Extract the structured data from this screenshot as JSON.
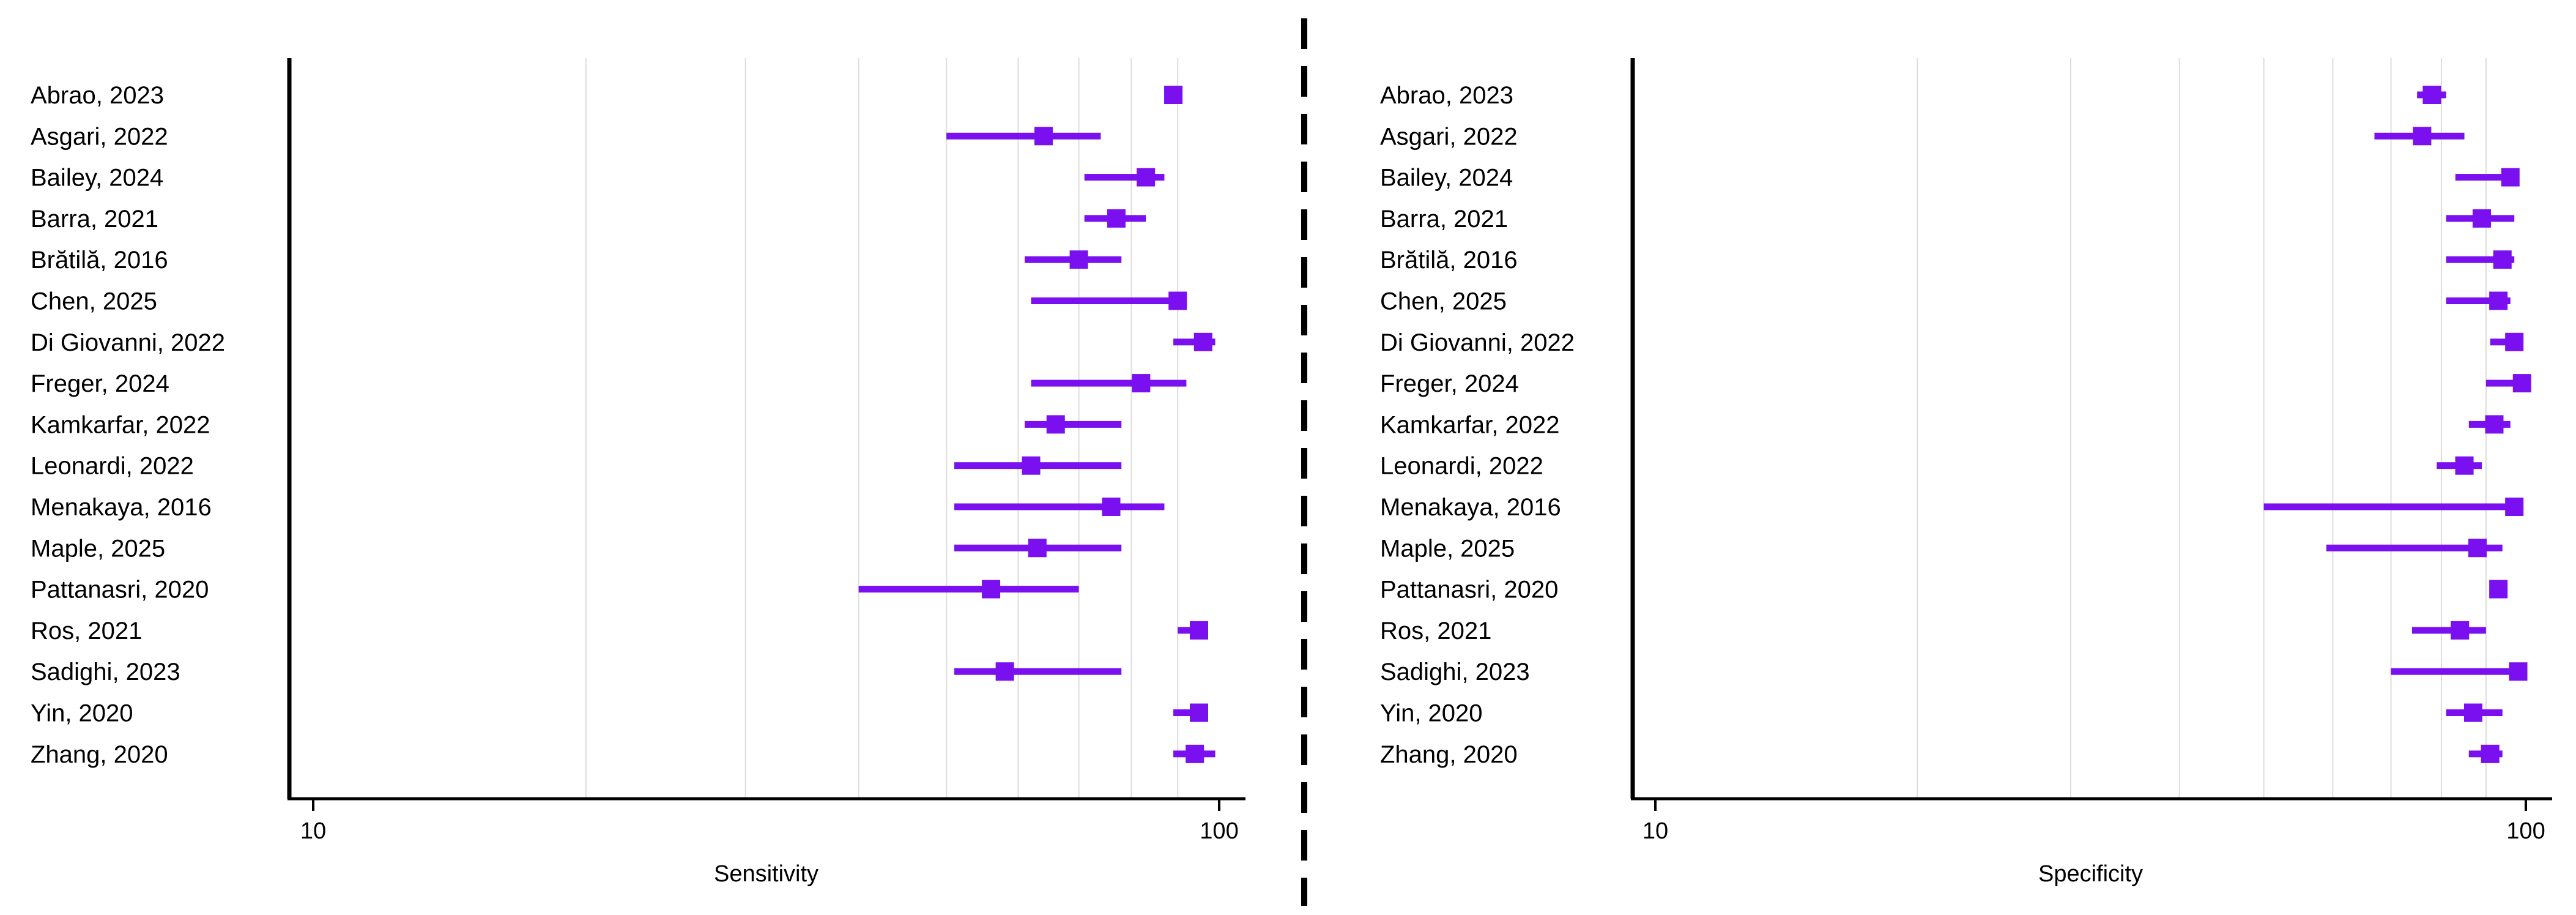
{
  "colors": {
    "marker": "#7a10f0",
    "axis": "#000000",
    "grid": "#dddddd",
    "divider": "#000000"
  },
  "chart_data": [
    {
      "type": "forest",
      "scale": "log",
      "xlabel": "Sensitivity",
      "xlim": [
        10,
        100
      ],
      "xticks": [
        10,
        100
      ],
      "minor_gridlines": [
        20,
        30,
        40,
        50,
        60,
        70,
        80,
        90
      ],
      "grid": true,
      "studies": [
        {
          "label": "Abrao, 2023",
          "point": 89,
          "low": 88,
          "high": 90
        },
        {
          "label": "Asgari, 2022",
          "point": 64,
          "low": 50,
          "high": 74
        },
        {
          "label": "Bailey, 2024",
          "point": 83,
          "low": 71,
          "high": 87
        },
        {
          "label": "Barra, 2021",
          "point": 77,
          "low": 71,
          "high": 83
        },
        {
          "label": "Brătilă, 2016",
          "point": 70,
          "low": 61,
          "high": 78
        },
        {
          "label": "Chen, 2025",
          "point": 90,
          "low": 62,
          "high": 92
        },
        {
          "label": "Di Giovanni, 2022",
          "point": 96,
          "low": 89,
          "high": 99
        },
        {
          "label": "Freger, 2024",
          "point": 82,
          "low": 62,
          "high": 92
        },
        {
          "label": "Kamkarfar, 2022",
          "point": 66,
          "low": 61,
          "high": 78
        },
        {
          "label": "Leonardi, 2022",
          "point": 62,
          "low": 51,
          "high": 78
        },
        {
          "label": "Menakaya, 2016",
          "point": 76,
          "low": 51,
          "high": 87
        },
        {
          "label": "Maple, 2025",
          "point": 63,
          "low": 51,
          "high": 78
        },
        {
          "label": "Pattanasri, 2020",
          "point": 56,
          "low": 40,
          "high": 70
        },
        {
          "label": "Ros, 2021",
          "point": 95,
          "low": 90,
          "high": 97
        },
        {
          "label": "Sadighi, 2023",
          "point": 58,
          "low": 51,
          "high": 78
        },
        {
          "label": "Yin, 2020",
          "point": 95,
          "low": 89,
          "high": 97
        },
        {
          "label": "Zhang, 2020",
          "point": 94,
          "low": 89,
          "high": 99
        }
      ]
    },
    {
      "type": "forest",
      "scale": "log",
      "xlabel": "Specificity",
      "xlim": [
        10,
        100
      ],
      "xticks": [
        10,
        100
      ],
      "minor_gridlines": [
        20,
        30,
        40,
        50,
        60,
        70,
        80,
        90
      ],
      "grid": true,
      "studies": [
        {
          "label": "Abrao, 2023",
          "point": 78,
          "low": 75,
          "high": 81
        },
        {
          "label": "Asgari, 2022",
          "point": 76,
          "low": 67,
          "high": 85
        },
        {
          "label": "Bailey, 2024",
          "point": 96,
          "low": 83,
          "high": 97
        },
        {
          "label": "Barra, 2021",
          "point": 89,
          "low": 81,
          "high": 97
        },
        {
          "label": "Brătilă, 2016",
          "point": 94,
          "low": 81,
          "high": 97
        },
        {
          "label": "Chen, 2025",
          "point": 93,
          "low": 81,
          "high": 96
        },
        {
          "label": "Di Giovanni, 2022",
          "point": 97,
          "low": 91,
          "high": 99
        },
        {
          "label": "Freger, 2024",
          "point": 99,
          "low": 90,
          "high": 100
        },
        {
          "label": "Kamkarfar, 2022",
          "point": 92,
          "low": 86,
          "high": 96
        },
        {
          "label": "Leonardi, 2022",
          "point": 85,
          "low": 79,
          "high": 89
        },
        {
          "label": "Menakaya, 2016",
          "point": 97,
          "low": 50,
          "high": 97
        },
        {
          "label": "Maple, 2025",
          "point": 88,
          "low": 59,
          "high": 94
        },
        {
          "label": "Pattanasri, 2020",
          "point": 93,
          "low": 92,
          "high": 94
        },
        {
          "label": "Ros, 2021",
          "point": 84,
          "low": 74,
          "high": 90
        },
        {
          "label": "Sadighi, 2023",
          "point": 98,
          "low": 70,
          "high": 98
        },
        {
          "label": "Yin, 2020",
          "point": 87,
          "low": 81,
          "high": 94
        },
        {
          "label": "Zhang, 2020",
          "point": 91,
          "low": 86,
          "high": 94
        }
      ]
    }
  ]
}
